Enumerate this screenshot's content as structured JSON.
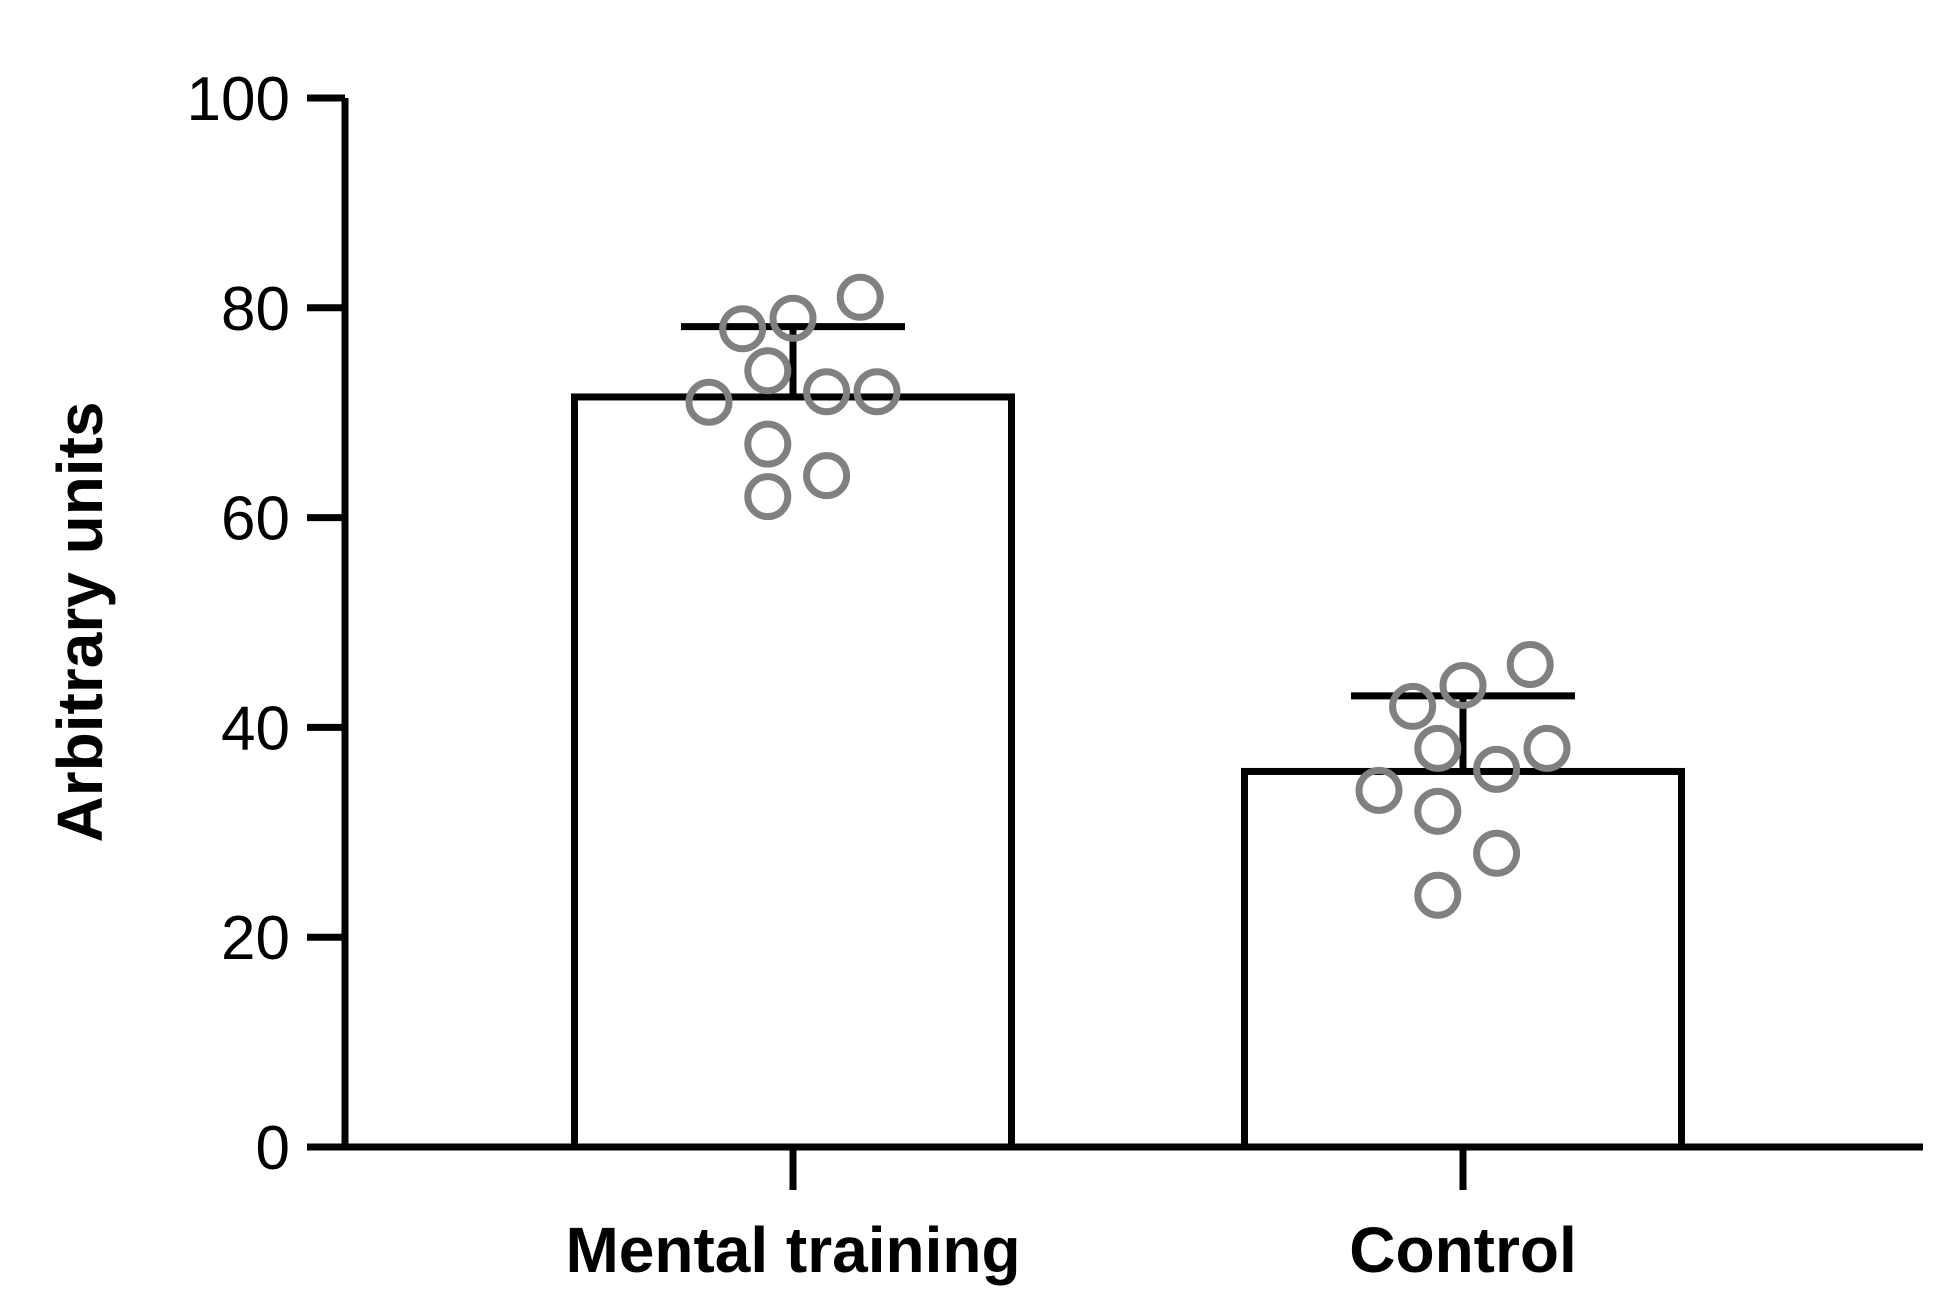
{
  "chart_data": {
    "type": "bar",
    "title": "",
    "xlabel": "",
    "ylabel": "Arbitrary units",
    "ylim": [
      0,
      100
    ],
    "yticks": [
      0,
      20,
      40,
      60,
      80,
      100
    ],
    "ytick_labels": [
      "0",
      "20",
      "40",
      "60",
      "80",
      "100"
    ],
    "grid": false,
    "legend": "none",
    "categories": [
      "Mental training",
      "Control"
    ],
    "values": [
      71.5,
      35.8
    ],
    "error_upper": [
      78.2,
      43.0
    ],
    "points": [
      [
        62,
        64,
        67,
        71,
        72,
        72,
        74,
        78,
        79,
        81
      ],
      [
        24,
        28,
        32,
        34,
        36,
        38,
        38,
        42,
        44,
        46
      ]
    ],
    "colors": {
      "bar_fill": "#ffffff",
      "bar_stroke": "#000000",
      "point_stroke": "#808080",
      "axis": "#000000"
    }
  }
}
